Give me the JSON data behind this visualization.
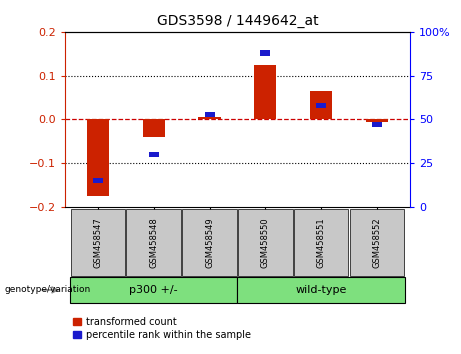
{
  "title": "GDS3598 / 1449642_at",
  "samples": [
    "GSM458547",
    "GSM458548",
    "GSM458549",
    "GSM458550",
    "GSM458551",
    "GSM458552"
  ],
  "red_values": [
    -0.175,
    -0.04,
    0.005,
    0.125,
    0.065,
    -0.005
  ],
  "blue_values_pct": [
    15,
    30,
    53,
    88,
    58,
    47
  ],
  "groups": [
    {
      "label": "p300 +/-",
      "start": 0,
      "end": 3,
      "color": "#7EE07E"
    },
    {
      "label": "wild-type",
      "start": 3,
      "end": 6,
      "color": "#7EE07E"
    }
  ],
  "group_label": "genotype/variation",
  "ylim_left": [
    -0.2,
    0.2
  ],
  "ylim_right": [
    0,
    100
  ],
  "yticks_left": [
    -0.2,
    -0.1,
    0.0,
    0.1,
    0.2
  ],
  "yticks_right": [
    0,
    25,
    50,
    75,
    100
  ],
  "ytick_labels_right": [
    "0",
    "25",
    "50",
    "75",
    "100%"
  ],
  "red_color": "#CC2200",
  "blue_color": "#1A1ACC",
  "background_color": "#ffffff",
  "zero_line_color": "#CC0000",
  "legend_items": [
    "transformed count",
    "percentile rank within the sample"
  ],
  "sample_box_color": "#C8C8C8",
  "red_bar_width": 0.4,
  "blue_bar_width": 0.18
}
